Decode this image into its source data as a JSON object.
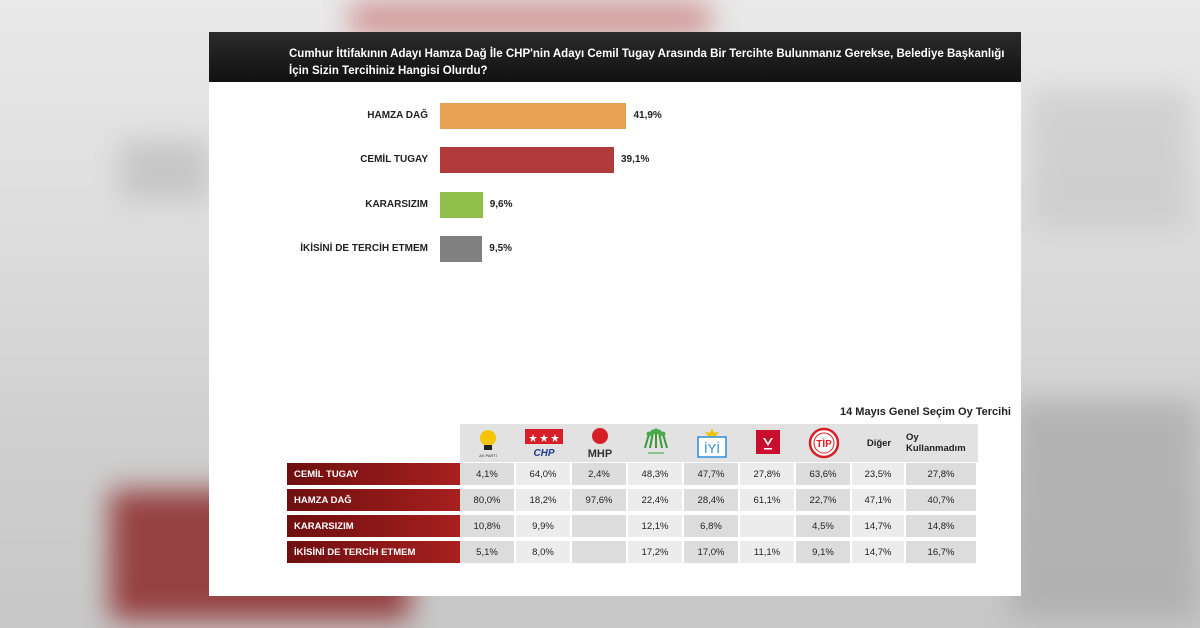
{
  "title": "Cumhur İttifakının Adayı Hamza Dağ İle CHP'nin Adayı Cemil Tugay Arasında Bir Tercihte Bulunmanız Gerekse, Belediye Başkanlığı İçin Sizin Tercihiniz Hangisi Olurdu?",
  "chart_data": [
    {
      "type": "bar",
      "orientation": "horizontal",
      "categories": [
        "HAMZA DAĞ",
        "CEMİL TUGAY",
        "KARARSIZIM",
        "İKİSİNİ DE TERCİH ETMEM"
      ],
      "values": [
        41.9,
        39.1,
        9.6,
        9.5
      ],
      "labels": [
        "41,9%",
        "39,1%",
        "9,6%",
        "9,5%"
      ],
      "colors": [
        "#e8a052",
        "#b23a3a",
        "#8fbf4a",
        "#808080"
      ],
      "xlim": [
        0,
        100
      ],
      "grid": false
    },
    {
      "type": "table",
      "title": "14 Mayıs Genel Seçim Oy Tercihi",
      "columns": [
        {
          "name": "",
          "icon": "ak-parti-logo",
          "logo_text": "AK PARTİ"
        },
        {
          "name": "",
          "icon": "chp-logo",
          "logo_text": "CHP"
        },
        {
          "name": "",
          "icon": "mhp-logo",
          "logo_text": "MHP"
        },
        {
          "name": "",
          "icon": "yesil-sol-parti-logo"
        },
        {
          "name": "",
          "icon": "iyi-parti-logo",
          "logo_text": "İYİ"
        },
        {
          "name": "",
          "icon": "zafer-partisi-logo"
        },
        {
          "name": "",
          "icon": "tip-logo",
          "logo_text": "TİP"
        },
        {
          "name": "Diğer"
        },
        {
          "name": "Oy Kullanmadım"
        }
      ],
      "rows": [
        {
          "label": "CEMİL TUGAY",
          "values": [
            "4,1%",
            "64,0%",
            "2,4%",
            "48,3%",
            "47,7%",
            "27,8%",
            "63,6%",
            "23,5%",
            "27,8%"
          ]
        },
        {
          "label": "HAMZA DAĞ",
          "values": [
            "80,0%",
            "18,2%",
            "97,6%",
            "22,4%",
            "28,4%",
            "61,1%",
            "22,7%",
            "47,1%",
            "40,7%"
          ]
        },
        {
          "label": "KARARSIZIM",
          "values": [
            "10,8%",
            "9,9%",
            "",
            "12,1%",
            "6,8%",
            "",
            "4,5%",
            "14,7%",
            "14,8%"
          ]
        },
        {
          "label": "İKİSİNİ DE TERCİH ETMEM",
          "values": [
            "5,1%",
            "8,0%",
            "",
            "17,2%",
            "17,0%",
            "11,1%",
            "9,1%",
            "14,7%",
            "16,7%"
          ]
        }
      ]
    }
  ]
}
